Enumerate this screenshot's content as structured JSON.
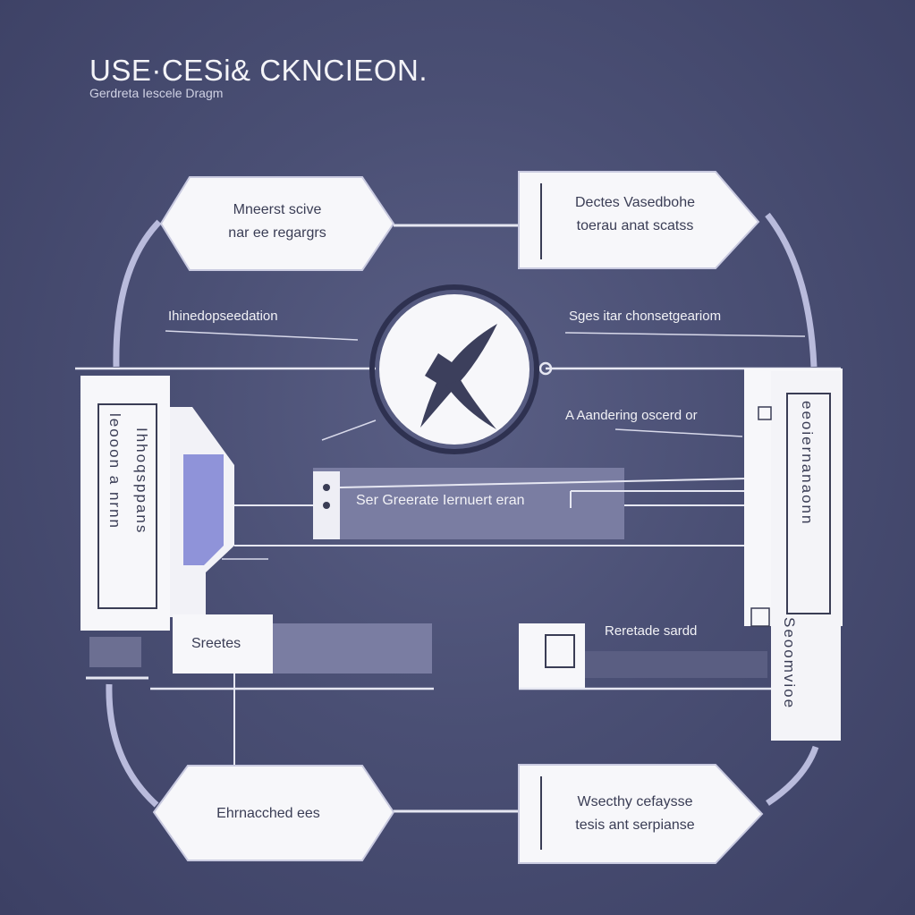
{
  "header": {
    "title": "USE·CESi& CKNCIEON.",
    "subtitle": "Gerdreta Iescele Dragm"
  },
  "nodes": {
    "top_left": {
      "line1": "Mneerst scive",
      "line2": "nar ee regargrs"
    },
    "top_right": {
      "line1": "Dectes Vasedbohe",
      "line2": "toerau anat scatss"
    },
    "bottom_left": {
      "line1": "Ehrnacched ees"
    },
    "bottom_right": {
      "line1": "Wsecthy cefaysse",
      "line2": "tesis ant serpianse"
    },
    "left_panel": {
      "col1": "leooon a nrnn",
      "col2": "Ihhoqsppans"
    },
    "right_panel": {
      "col1": "eeoiernanaonn",
      "col2": "Seoomvioe"
    },
    "center_bar": {
      "label": "Ser Greerate Iernuert eran"
    },
    "sreetes": {
      "label": "Sreetes"
    },
    "center_logo": {
      "icon": "x-logo-icon"
    }
  },
  "annotations": {
    "left": "Ihinedopseedation",
    "right": "Sges itar chonsetgeariom",
    "mid_right": "A Aandering oscerd or",
    "lower_right": "Reretade sardd"
  },
  "colors": {
    "background": "#4a4f74",
    "box_fill": "#f7f7fa",
    "accent": "#8a8fd6",
    "connector": "#dfe0ee"
  }
}
